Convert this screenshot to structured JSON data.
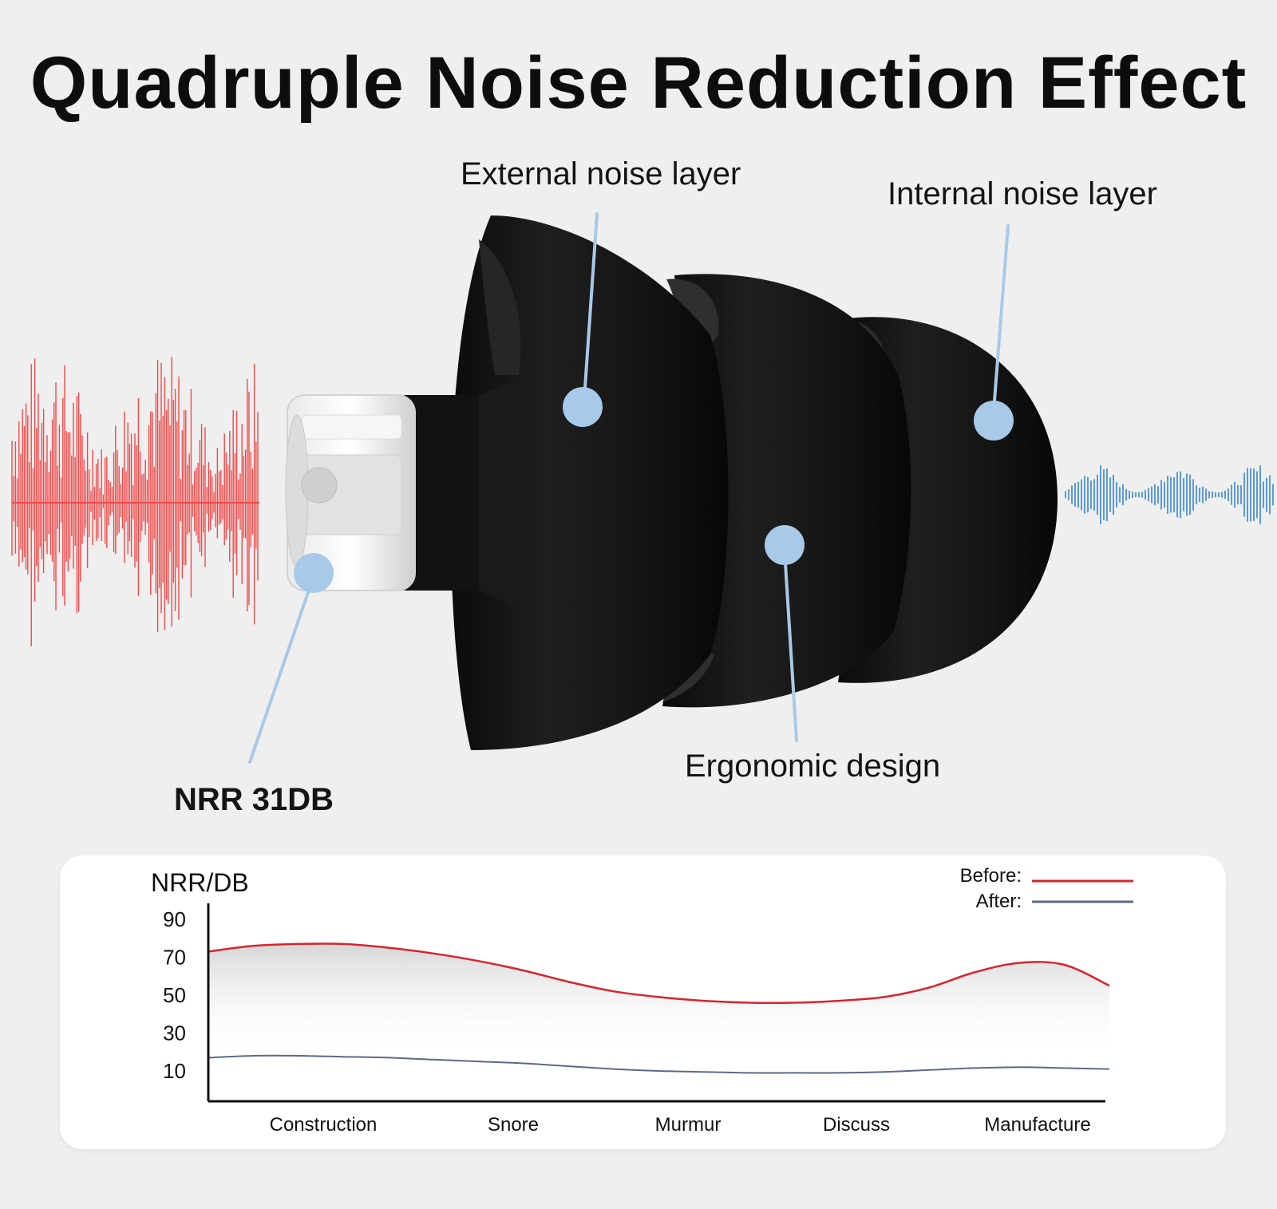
{
  "title": "Quadruple Noise Reduction Effect",
  "callouts": {
    "external": "External noise layer",
    "internal": "Internal noise layer",
    "ergonomic": "Ergonomic design",
    "nrr": "NRR 31DB"
  },
  "colors": {
    "loud_wave": "#f04a4a",
    "quiet_wave": "#5b9bd8",
    "callout_dot": "#a9c9e8",
    "before_line": "#d8242c",
    "after_line": "#5c6a86"
  },
  "chart_data": {
    "type": "line",
    "ylabel": "NRR/DB",
    "yticks": [
      90,
      70,
      50,
      30,
      10
    ],
    "ylim": [
      0,
      95
    ],
    "categories": [
      "Construction",
      "Snore",
      "Murmur",
      "Discuss",
      "Manufacture"
    ],
    "x": [
      0,
      0.5,
      1,
      1.5,
      2,
      2.5,
      3,
      3.5,
      4,
      4.5,
      5,
      5.5,
      6,
      6.5,
      7,
      7.5,
      8,
      8.5,
      9,
      9.5,
      10
    ],
    "series": [
      {
        "name": "Before:",
        "color": "#d8242c",
        "values": [
          73,
          76,
          77,
          77,
          75,
          72,
          68,
          63,
          57,
          52,
          49,
          47,
          46,
          46,
          47,
          49,
          54,
          62,
          67,
          66,
          55
        ]
      },
      {
        "name": "After:",
        "color": "#5c6a86",
        "values": [
          17,
          18,
          18,
          17.5,
          17,
          16,
          15,
          14,
          12.5,
          11,
          10,
          9.5,
          9,
          9,
          9,
          9.5,
          10.5,
          11.5,
          12,
          11.5,
          11
        ]
      }
    ],
    "legend": "top-right"
  }
}
